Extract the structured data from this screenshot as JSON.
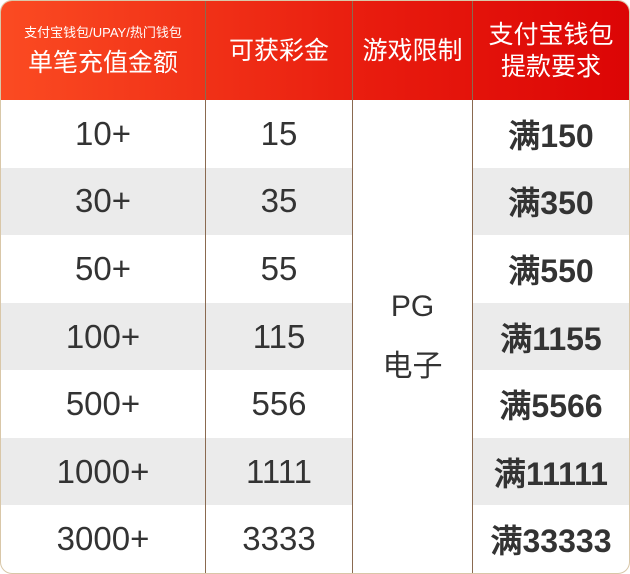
{
  "header": {
    "col1_sub": "支付宝钱包/UPAY/热门钱包",
    "col1": "单笔充值金额",
    "col2": "可获彩金",
    "col3": "游戏限制",
    "col4_line1": "支付宝钱包",
    "col4_line2": "提款要求"
  },
  "colors": {
    "header_start": "#fb4b22",
    "header_end": "#dc0505",
    "row_alt": "#ebebeb"
  },
  "game_limit": {
    "line1": "PG",
    "line2": "电子"
  },
  "rows": [
    {
      "deposit": "10+",
      "bonus": "15",
      "withdraw": "满150"
    },
    {
      "deposit": "30+",
      "bonus": "35",
      "withdraw": "满350"
    },
    {
      "deposit": "50+",
      "bonus": "55",
      "withdraw": "满550"
    },
    {
      "deposit": "100+",
      "bonus": "115",
      "withdraw": "满1155"
    },
    {
      "deposit": "500+",
      "bonus": "556",
      "withdraw": "满5566"
    },
    {
      "deposit": "1000+",
      "bonus": "1111",
      "withdraw": "满11111"
    },
    {
      "deposit": "3000+",
      "bonus": "3333",
      "withdraw": "满33333"
    }
  ]
}
